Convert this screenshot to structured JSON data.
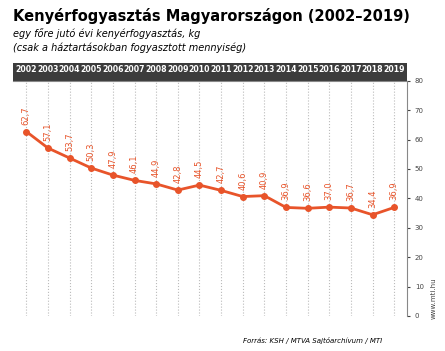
{
  "chart_data": {
    "type": "line",
    "title": "Kenyérfogyasztás Magyarországon (2002–2019)",
    "subtitle": [
      "egy főre jutó évi kenyérfogyasztás, kg",
      "(csak a háztartásokban fogyasztott mennyiség)"
    ],
    "categories": [
      "2002",
      "2003",
      "2004",
      "2005",
      "2006",
      "2007",
      "2008",
      "2009",
      "2010",
      "2011",
      "2012",
      "2013",
      "2014",
      "2015",
      "2016",
      "2017",
      "2018",
      "2019"
    ],
    "values": [
      62.7,
      57.1,
      53.7,
      50.3,
      47.9,
      46.1,
      44.9,
      42.8,
      44.5,
      42.7,
      40.6,
      40.9,
      36.9,
      36.6,
      37.0,
      36.7,
      34.4,
      36.9
    ],
    "value_labels": [
      "62,7",
      "57,1",
      "53,7",
      "50,3",
      "47,9",
      "46,1",
      "44,9",
      "42,8",
      "44,5",
      "42,7",
      "40,6",
      "40,9",
      "36,9",
      "36,6",
      "37,0",
      "36,7",
      "34,4",
      "36,9"
    ],
    "color": "#e8542a",
    "marker": "o",
    "ylim": [
      0,
      80
    ],
    "yticks": [
      0,
      10,
      20,
      30,
      40,
      50,
      60,
      70,
      80
    ],
    "grid": true,
    "data_labels": true,
    "source": "Forrás: KSH / MTVA Sajtóarchívum / MTI",
    "annotations": [
      "www.mti.hu"
    ]
  }
}
